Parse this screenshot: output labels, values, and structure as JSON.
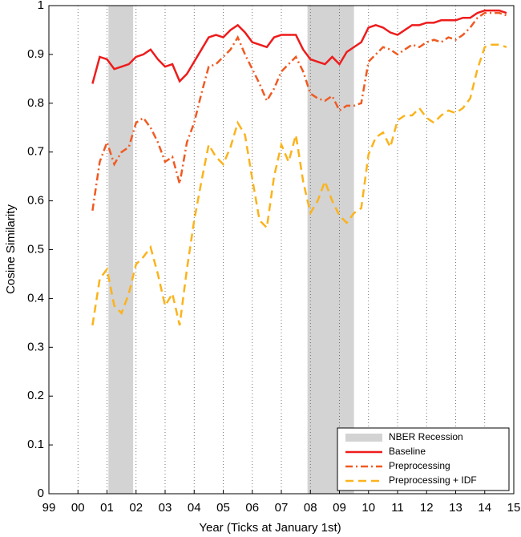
{
  "chart_data": {
    "type": "line",
    "xlabel": "Year (Ticks at January 1st)",
    "ylabel": "Cosine Similarity",
    "xlim": [
      1999,
      2015
    ],
    "ylim": [
      0,
      1
    ],
    "xticks": [
      {
        "value": 1999,
        "label": "99"
      },
      {
        "value": 2000,
        "label": "00"
      },
      {
        "value": 2001,
        "label": "01"
      },
      {
        "value": 2002,
        "label": "02"
      },
      {
        "value": 2003,
        "label": "03"
      },
      {
        "value": 2004,
        "label": "04"
      },
      {
        "value": 2005,
        "label": "05"
      },
      {
        "value": 2006,
        "label": "06"
      },
      {
        "value": 2007,
        "label": "07"
      },
      {
        "value": 2008,
        "label": "08"
      },
      {
        "value": 2009,
        "label": "09"
      },
      {
        "value": 2010,
        "label": "10"
      },
      {
        "value": 2011,
        "label": "11"
      },
      {
        "value": 2012,
        "label": "12"
      },
      {
        "value": 2013,
        "label": "13"
      },
      {
        "value": 2014,
        "label": "14"
      },
      {
        "value": 2015,
        "label": "15"
      }
    ],
    "yticks": [
      0,
      0.1,
      0.2,
      0.3,
      0.4,
      0.5,
      0.6,
      0.7,
      0.8,
      0.9,
      1
    ],
    "grid": "x-dotted",
    "legend": "lower right",
    "recessions": {
      "name": "NBER Recession",
      "color": "#d3d3d3",
      "spans": [
        [
          2001.05,
          2001.9
        ],
        [
          2007.9,
          2009.5
        ]
      ]
    },
    "x": [
      2000.5,
      2000.75,
      2001.0,
      2001.25,
      2001.5,
      2001.75,
      2002.0,
      2002.25,
      2002.5,
      2002.75,
      2003.0,
      2003.25,
      2003.5,
      2003.75,
      2004.0,
      2004.25,
      2004.5,
      2004.75,
      2005.0,
      2005.25,
      2005.5,
      2005.75,
      2006.0,
      2006.25,
      2006.5,
      2006.75,
      2007.0,
      2007.25,
      2007.5,
      2007.75,
      2008.0,
      2008.25,
      2008.5,
      2008.75,
      2009.0,
      2009.25,
      2009.5,
      2009.75,
      2010.0,
      2010.25,
      2010.5,
      2010.75,
      2011.0,
      2011.25,
      2011.5,
      2011.75,
      2012.0,
      2012.25,
      2012.5,
      2012.75,
      2013.0,
      2013.25,
      2013.5,
      2013.75,
      2014.0,
      2014.25,
      2014.5,
      2014.75
    ],
    "series": [
      {
        "name": "Baseline",
        "color": "#ee1c1c",
        "linestyle": "solid",
        "values": [
          0.84,
          0.895,
          0.89,
          0.87,
          0.875,
          0.88,
          0.895,
          0.9,
          0.91,
          0.89,
          0.875,
          0.88,
          0.845,
          0.86,
          0.885,
          0.91,
          0.935,
          0.94,
          0.935,
          0.95,
          0.96,
          0.945,
          0.925,
          0.92,
          0.915,
          0.935,
          0.94,
          0.94,
          0.94,
          0.91,
          0.89,
          0.885,
          0.88,
          0.895,
          0.88,
          0.905,
          0.915,
          0.925,
          0.955,
          0.96,
          0.955,
          0.945,
          0.94,
          0.95,
          0.96,
          0.96,
          0.965,
          0.965,
          0.97,
          0.97,
          0.97,
          0.975,
          0.975,
          0.985,
          0.99,
          0.99,
          0.99,
          0.985
        ]
      },
      {
        "name": "Preprocessing",
        "color": "#f05a22",
        "linestyle": "dashdot",
        "values": [
          0.58,
          0.68,
          0.72,
          0.675,
          0.7,
          0.71,
          0.76,
          0.77,
          0.75,
          0.72,
          0.68,
          0.69,
          0.635,
          0.72,
          0.76,
          0.82,
          0.875,
          0.88,
          0.895,
          0.91,
          0.935,
          0.9,
          0.87,
          0.84,
          0.805,
          0.83,
          0.865,
          0.88,
          0.895,
          0.865,
          0.82,
          0.81,
          0.805,
          0.815,
          0.785,
          0.795,
          0.795,
          0.8,
          0.885,
          0.9,
          0.915,
          0.91,
          0.9,
          0.91,
          0.92,
          0.915,
          0.925,
          0.93,
          0.925,
          0.935,
          0.93,
          0.94,
          0.955,
          0.975,
          0.985,
          0.985,
          0.985,
          0.98
        ]
      },
      {
        "name": "Preprocessing + IDF",
        "color": "#fbb31c",
        "linestyle": "dashed",
        "values": [
          0.345,
          0.44,
          0.46,
          0.385,
          0.37,
          0.41,
          0.47,
          0.485,
          0.505,
          0.45,
          0.385,
          0.41,
          0.345,
          0.46,
          0.56,
          0.64,
          0.715,
          0.69,
          0.675,
          0.71,
          0.76,
          0.735,
          0.645,
          0.56,
          0.545,
          0.65,
          0.715,
          0.68,
          0.735,
          0.64,
          0.575,
          0.6,
          0.64,
          0.6,
          0.57,
          0.555,
          0.575,
          0.585,
          0.695,
          0.73,
          0.74,
          0.71,
          0.765,
          0.775,
          0.775,
          0.79,
          0.77,
          0.76,
          0.775,
          0.785,
          0.78,
          0.79,
          0.81,
          0.87,
          0.915,
          0.92,
          0.92,
          0.915
        ]
      }
    ]
  }
}
